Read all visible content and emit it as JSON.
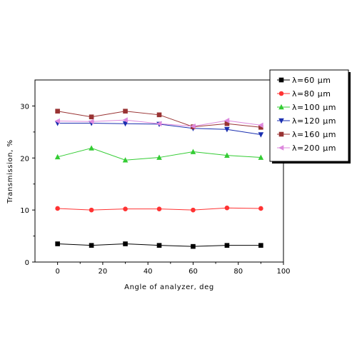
{
  "chart_data": {
    "type": "line",
    "xlabel": "Angle of analyzer, deg",
    "ylabel": "Transmission, %",
    "xlim": [
      -10,
      100
    ],
    "ylim": [
      0,
      35
    ],
    "xticks": [
      "0",
      "20",
      "40",
      "60",
      "80",
      "100"
    ],
    "yticks": [
      "0",
      "10",
      "20",
      "30"
    ],
    "grid": false,
    "legend_position": "top-right",
    "x": [
      0,
      15,
      30,
      45,
      60,
      75,
      90
    ],
    "series": [
      {
        "name": "λ=60  μm",
        "color": "#000000",
        "marker": "square",
        "values": [
          3.5,
          3.2,
          3.5,
          3.2,
          3.0,
          3.2,
          3.2
        ]
      },
      {
        "name": "λ=80  μm",
        "color": "#ff3333",
        "marker": "circle",
        "values": [
          10.3,
          10.0,
          10.2,
          10.2,
          10.0,
          10.4,
          10.3
        ]
      },
      {
        "name": "λ=100  μm",
        "color": "#33cc33",
        "marker": "triangle-up",
        "values": [
          20.2,
          21.9,
          19.6,
          20.1,
          21.2,
          20.5,
          20.1
        ]
      },
      {
        "name": "λ=120  μm",
        "color": "#1a2fb0",
        "marker": "triangle-down",
        "values": [
          26.7,
          26.7,
          26.6,
          26.5,
          25.7,
          25.5,
          24.5
        ]
      },
      {
        "name": "λ=160  μm",
        "color": "#993333",
        "marker": "square",
        "values": [
          29.0,
          27.9,
          29.0,
          28.3,
          26.0,
          26.6,
          25.9
        ]
      },
      {
        "name": "λ=200  μm",
        "color": "#dd88dd",
        "marker": "triangle-left",
        "values": [
          27.1,
          27.0,
          27.3,
          26.6,
          26.1,
          27.2,
          26.3
        ]
      }
    ]
  }
}
